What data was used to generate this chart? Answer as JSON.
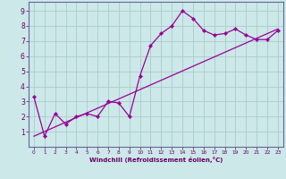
{
  "title": "",
  "xlabel": "Windchill (Refroidissement éolien,°C)",
  "x_data": [
    0,
    1,
    2,
    3,
    4,
    5,
    6,
    7,
    8,
    9,
    10,
    11,
    12,
    13,
    14,
    15,
    16,
    17,
    18,
    19,
    20,
    21,
    22,
    23
  ],
  "y_data": [
    3.3,
    0.7,
    2.2,
    1.5,
    2.0,
    2.2,
    2.0,
    3.0,
    2.9,
    2.0,
    4.7,
    6.7,
    7.5,
    8.0,
    9.0,
    8.5,
    7.7,
    7.4,
    7.5,
    7.8,
    7.4,
    7.1,
    7.1,
    7.7
  ],
  "trend_x": [
    0,
    23
  ],
  "trend_y": [
    0.7,
    7.8
  ],
  "line_color": "#990099",
  "marker": "D",
  "marker_size": 2.2,
  "bg_color": "#cce8e8",
  "grid_color": "#aacccc",
  "axis_color": "#660066",
  "spine_color": "#666699",
  "xlim": [
    -0.5,
    23.5
  ],
  "ylim": [
    0,
    9.6
  ],
  "yticks": [
    1,
    2,
    3,
    4,
    5,
    6,
    7,
    8,
    9
  ],
  "xticks": [
    0,
    1,
    2,
    3,
    4,
    5,
    6,
    7,
    8,
    9,
    10,
    11,
    12,
    13,
    14,
    15,
    16,
    17,
    18,
    19,
    20,
    21,
    22,
    23
  ]
}
